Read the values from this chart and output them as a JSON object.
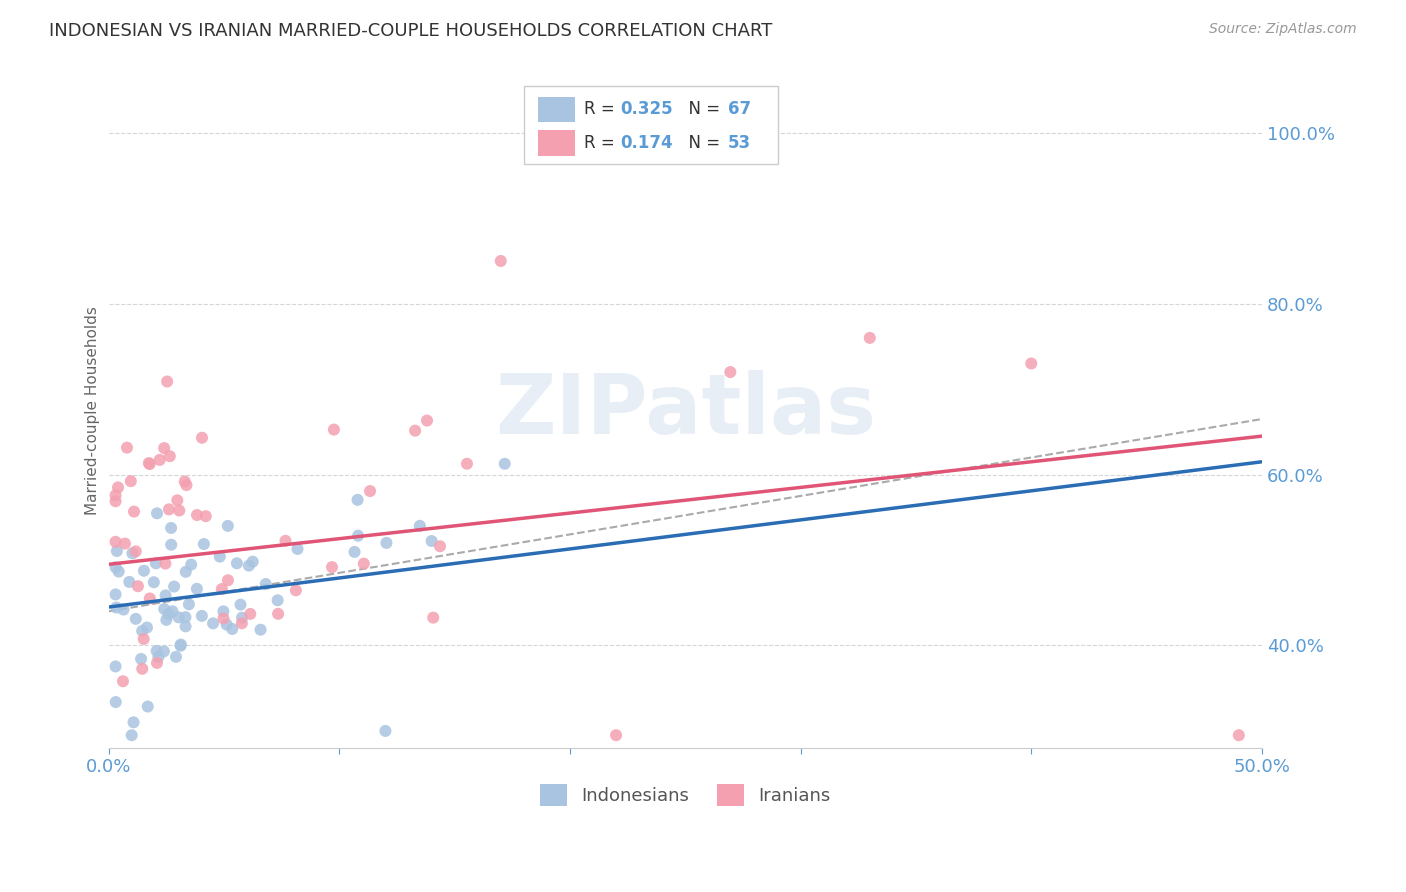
{
  "title": "INDONESIAN VS IRANIAN MARRIED-COUPLE HOUSEHOLDS CORRELATION CHART",
  "source": "Source: ZipAtlas.com",
  "ylabel": "Married-couple Households",
  "xlim": [
    0.0,
    0.5
  ],
  "ylim": [
    0.28,
    1.07
  ],
  "yticks": [
    0.4,
    0.6,
    0.8,
    1.0
  ],
  "yticklabels": [
    "40.0%",
    "60.0%",
    "80.0%",
    "100.0%"
  ],
  "xticks": [
    0.0,
    0.1,
    0.2,
    0.3,
    0.4,
    0.5
  ],
  "xticklabels": [
    "0.0%",
    "",
    "",
    "",
    "",
    "50.0%"
  ],
  "axis_color": "#5b9bd5",
  "background_color": "#ffffff",
  "grid_color": "#cccccc",
  "indonesian_color": "#a8c4e0",
  "iranian_color": "#f4a0b0",
  "indonesian_line_color": "#2a6db5",
  "iranian_line_color": "#e05575",
  "diagonal_color": "#aaaaaa",
  "R_indonesian": 0.325,
  "N_indonesian": 67,
  "R_iranian": 0.174,
  "N_iranian": 53,
  "watermark": "ZIPatlas",
  "ind_line": [
    0.0,
    0.445,
    0.5,
    0.615
  ],
  "iran_line": [
    0.0,
    0.495,
    0.5,
    0.645
  ],
  "diag_line": [
    0.0,
    0.44,
    0.5,
    0.665
  ]
}
